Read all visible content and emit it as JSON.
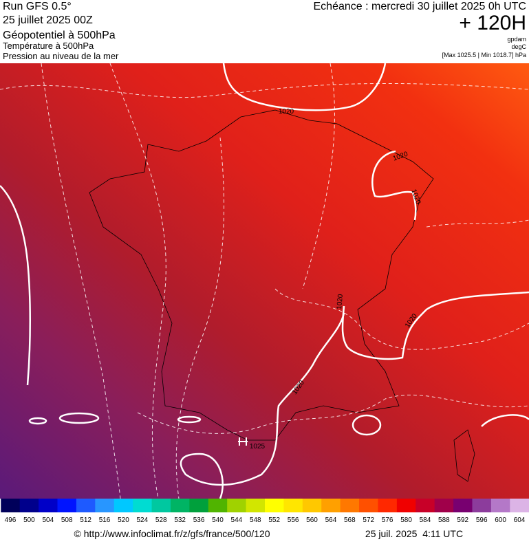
{
  "header": {
    "run": "Run GFS 0.5°",
    "run_date": "25 juillet 2025 00Z",
    "field_main": "Géopotentiel à 500hPa",
    "field_2": "Température à 500hPa",
    "field_3": "Pression au niveau de la mer",
    "valid": "Echéance : mercredi 30 juillet 2025 0h UTC",
    "lead": "+ 120H",
    "unit_1": "gpdam",
    "unit_2": "degC",
    "extremes": "[Max 1025.5 | Min 1018.7] hPa"
  },
  "map": {
    "contour_labels": [
      "1020",
      "1020",
      "1020",
      "1020",
      "1020",
      "1020",
      "1025"
    ]
  },
  "legend": {
    "labels": [
      496,
      500,
      504,
      508,
      512,
      516,
      520,
      524,
      528,
      532,
      536,
      540,
      544,
      548,
      552,
      556,
      560,
      564,
      568,
      572,
      576,
      580,
      584,
      588,
      592,
      596,
      600,
      604
    ],
    "colors": [
      "#00005a",
      "#00008c",
      "#0000c8",
      "#0014ff",
      "#1e5aff",
      "#2896ff",
      "#00c8ff",
      "#00dcd2",
      "#00c8a0",
      "#00b464",
      "#00a03c",
      "#50b400",
      "#a0d200",
      "#d2e600",
      "#ffff00",
      "#ffe600",
      "#ffc800",
      "#ffa000",
      "#ff7800",
      "#ff5000",
      "#ff2800",
      "#f00000",
      "#c80028",
      "#a0004a",
      "#780070",
      "#8c3c9c",
      "#b478c8",
      "#dcb4e6"
    ]
  },
  "footer": {
    "source": "© http://www.infoclimat.fr/z/gfs/france/500/120",
    "generated": "25 juil. 2025  4:11 UTC"
  }
}
